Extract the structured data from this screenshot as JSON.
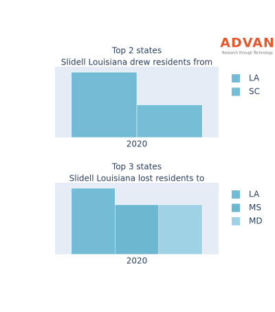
{
  "logo": {
    "text": "ADVAN",
    "tagline": "Research through Technology"
  },
  "chart_data": [
    {
      "type": "bar",
      "title": "Top 2 states",
      "subtitle": "Slidell Louisiana drew residents from",
      "categories": [
        "2020"
      ],
      "ylim": [
        0,
        2.17
      ],
      "series": [
        {
          "name": "LA",
          "color": "#73bbd5",
          "values": [
            2
          ]
        },
        {
          "name": "SC",
          "color": "#76bdd6",
          "values": [
            1
          ]
        }
      ]
    },
    {
      "type": "bar",
      "title": "Top 3 states",
      "subtitle": "Slidell Louisiana lost residents to",
      "categories": [
        "2020"
      ],
      "ylim": [
        0,
        4.33
      ],
      "series": [
        {
          "name": "LA",
          "color": "#74bcd6",
          "values": [
            4
          ]
        },
        {
          "name": "MS",
          "color": "#6db7d1",
          "values": [
            3
          ]
        },
        {
          "name": "MD",
          "color": "#9ed2e4",
          "values": [
            3
          ]
        }
      ]
    }
  ]
}
